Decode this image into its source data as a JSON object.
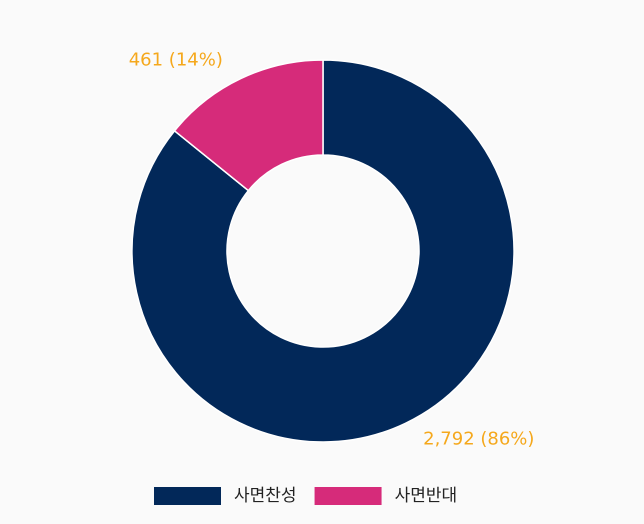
{
  "chart_data": {
    "type": "donut",
    "categories": [
      "사면찬성",
      "사면반대"
    ],
    "values": [
      2792,
      461
    ],
    "value_labels": [
      "2,792 (86%)",
      "461 (14%)"
    ],
    "colors": [
      "#022859",
      "#d62b7a"
    ],
    "label_color": "#f5a81c",
    "legend": "bottom"
  }
}
